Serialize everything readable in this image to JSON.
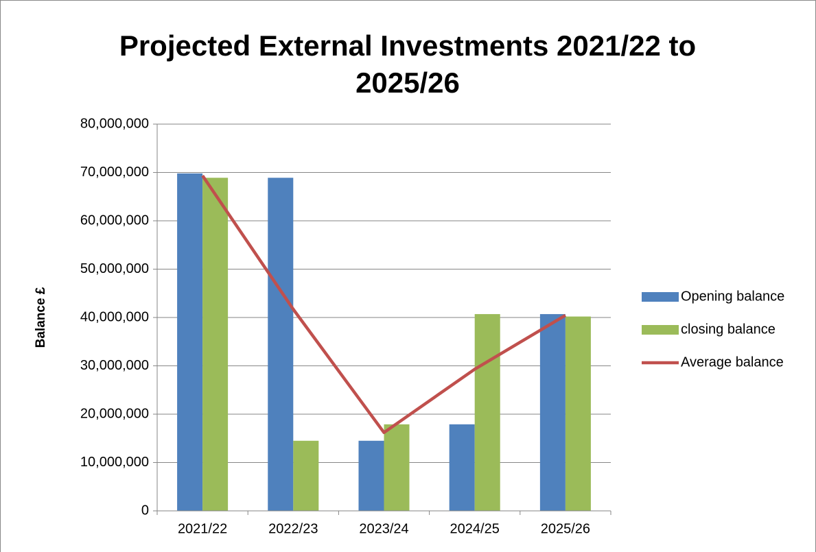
{
  "chart_data": {
    "type": "bar",
    "title": "Projected External Investments 2021/22 to 2025/26",
    "y_label": "Balance £",
    "categories": [
      "2021/22",
      "2022/23",
      "2023/24",
      "2024/25",
      "2025/26"
    ],
    "series": [
      {
        "name": "Opening balance",
        "color": "#4f81bd",
        "type": "bar",
        "values": [
          69800000,
          68900000,
          14500000,
          17900000,
          40700000
        ]
      },
      {
        "name": "closing balance",
        "color": "#9bbb59",
        "type": "bar",
        "values": [
          68900000,
          14500000,
          17900000,
          40700000,
          40200000
        ]
      },
      {
        "name": "Average balance",
        "color": "#c0504d",
        "type": "line",
        "values": [
          69350000,
          41700000,
          16200000,
          29300000,
          40450000
        ]
      }
    ],
    "ylim": [
      0,
      80000000
    ],
    "yticks": [
      0,
      {
        "value": 10000000,
        "label": "10,000,000"
      },
      {
        "value": 20000000,
        "label": "20,000,000"
      },
      {
        "value": 30000000,
        "label": "30,000,000"
      },
      {
        "value": 40000000,
        "label": "40,000,000"
      },
      {
        "value": 50000000,
        "label": "50,000,000"
      },
      {
        "value": 60000000,
        "label": "60,000,000"
      },
      {
        "value": 70000000,
        "label": "70,000,000"
      },
      {
        "value": 80000000,
        "label": "80,000,000"
      }
    ],
    "grid": true,
    "legend": "right"
  }
}
